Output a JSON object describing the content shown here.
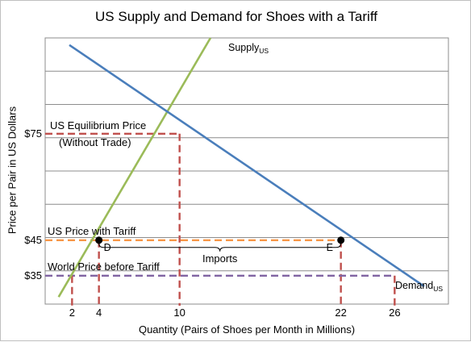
{
  "chart_data": {
    "type": "line",
    "title": "US Supply and Demand for Shoes with a Tariff",
    "xlabel": "Quantity (Pairs of Shoes per Month in Millions)",
    "ylabel": "Price per Pair in US Dollars",
    "x_ticks": [
      2,
      4,
      10,
      22,
      26
    ],
    "y_ticks": [
      35,
      45,
      75
    ],
    "y_tick_labels": [
      "$35",
      "$45",
      "$75"
    ],
    "xlim": [
      0,
      30
    ],
    "ylim": [
      27,
      102
    ],
    "grid": "horizontal",
    "series": [
      {
        "name": "Supply",
        "name_subscript": "US",
        "color": "#9bbb59",
        "points": [
          [
            1,
            29
          ],
          [
            12.3,
            102
          ]
        ]
      },
      {
        "name": "Demand",
        "name_subscript": "US",
        "color": "#4a7ebb",
        "points": [
          [
            1.8,
            100
          ],
          [
            28.2,
            32
          ]
        ]
      }
    ],
    "reference_lines": [
      {
        "label": "US Equilibrium Price",
        "sublabel": "(Without Trade)",
        "price": 75,
        "quantity": 10,
        "color": "#c0504d"
      },
      {
        "label": "US Price with Tariff",
        "price": 45,
        "quantities": [
          4,
          22
        ],
        "color": "#f79646"
      },
      {
        "label": "World Price before Tariff",
        "price": 35,
        "quantities": [
          2,
          26
        ],
        "color": "#8064a2"
      }
    ],
    "points": [
      {
        "label": "D",
        "x": 4,
        "y": 45
      },
      {
        "label": "E",
        "x": 22,
        "y": 45
      }
    ],
    "bracket": {
      "label": "Imports",
      "from": 4,
      "to": 22
    }
  }
}
